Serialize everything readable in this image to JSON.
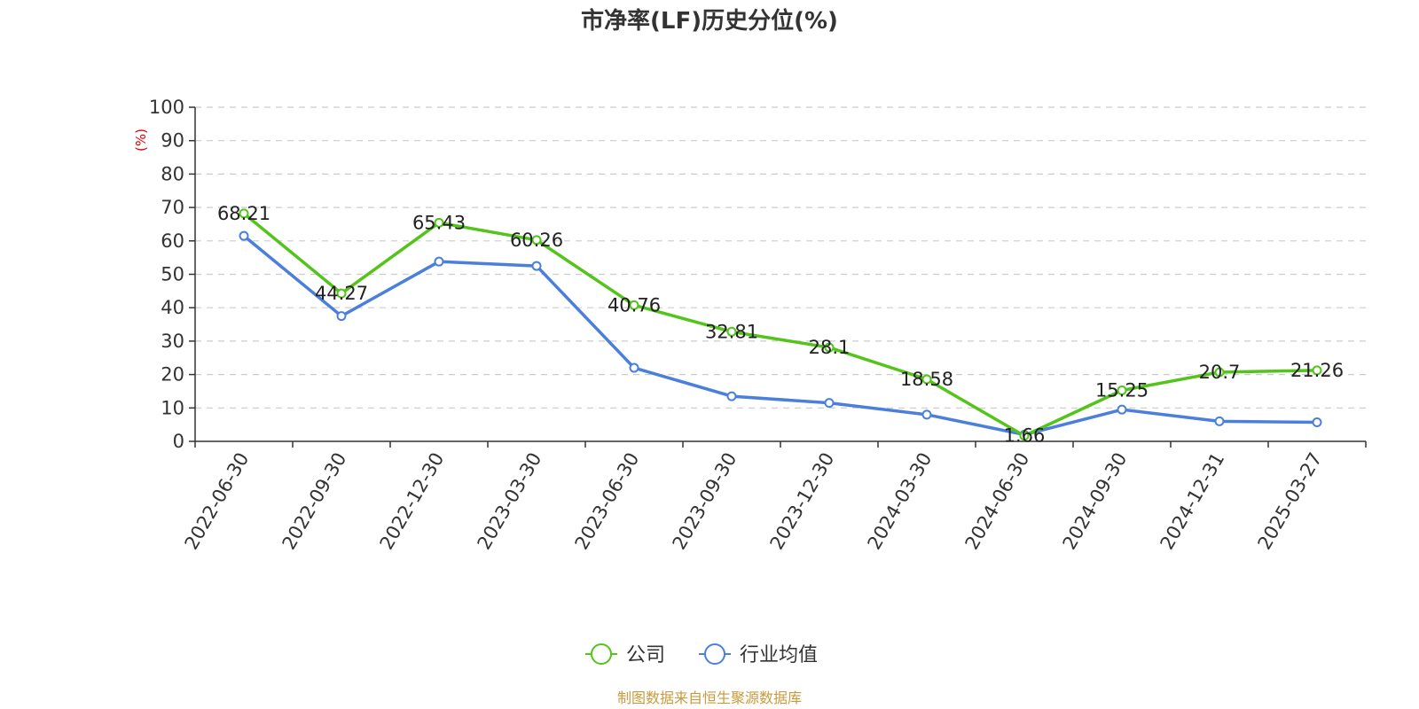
{
  "chart_data": {
    "type": "line",
    "title": "市净率(LF)历史分位(%)",
    "ylabel": "(%)",
    "ylim": [
      0,
      100
    ],
    "yticks": [
      "0",
      "10",
      "20",
      "30",
      "40",
      "50",
      "60",
      "70",
      "80",
      "90",
      "100"
    ],
    "categories": [
      "2022-06-30",
      "2022-09-30",
      "2022-12-30",
      "2023-03-30",
      "2023-06-30",
      "2023-09-30",
      "2023-12-30",
      "2024-03-30",
      "2024-06-30",
      "2024-09-30",
      "2024-12-31",
      "2025-03-27"
    ],
    "series": [
      {
        "name": "公司",
        "color": "#52c41a",
        "values": [
          68.21,
          44.27,
          65.43,
          60.26,
          40.76,
          32.81,
          28.1,
          18.58,
          1.66,
          15.25,
          20.7,
          21.26
        ],
        "labels": [
          "68.21",
          "44.27",
          "65.43",
          "60.26",
          "40.76",
          "32.81",
          "28.1",
          "18.58",
          "1.66",
          "15.25",
          "20.7",
          "21.26"
        ]
      },
      {
        "name": "行业均值",
        "color": "#4a7fdb",
        "values": [
          61.5,
          37.5,
          53.8,
          52.5,
          22.0,
          13.5,
          11.5,
          8.0,
          2.0,
          9.5,
          6.0,
          5.7
        ]
      }
    ],
    "grid": true,
    "legend_position": "bottom-center",
    "unit_color": "#e00000"
  },
  "footer": {
    "source": "制图数据来自恒生聚源数据库",
    "color": "#c99a3b"
  }
}
